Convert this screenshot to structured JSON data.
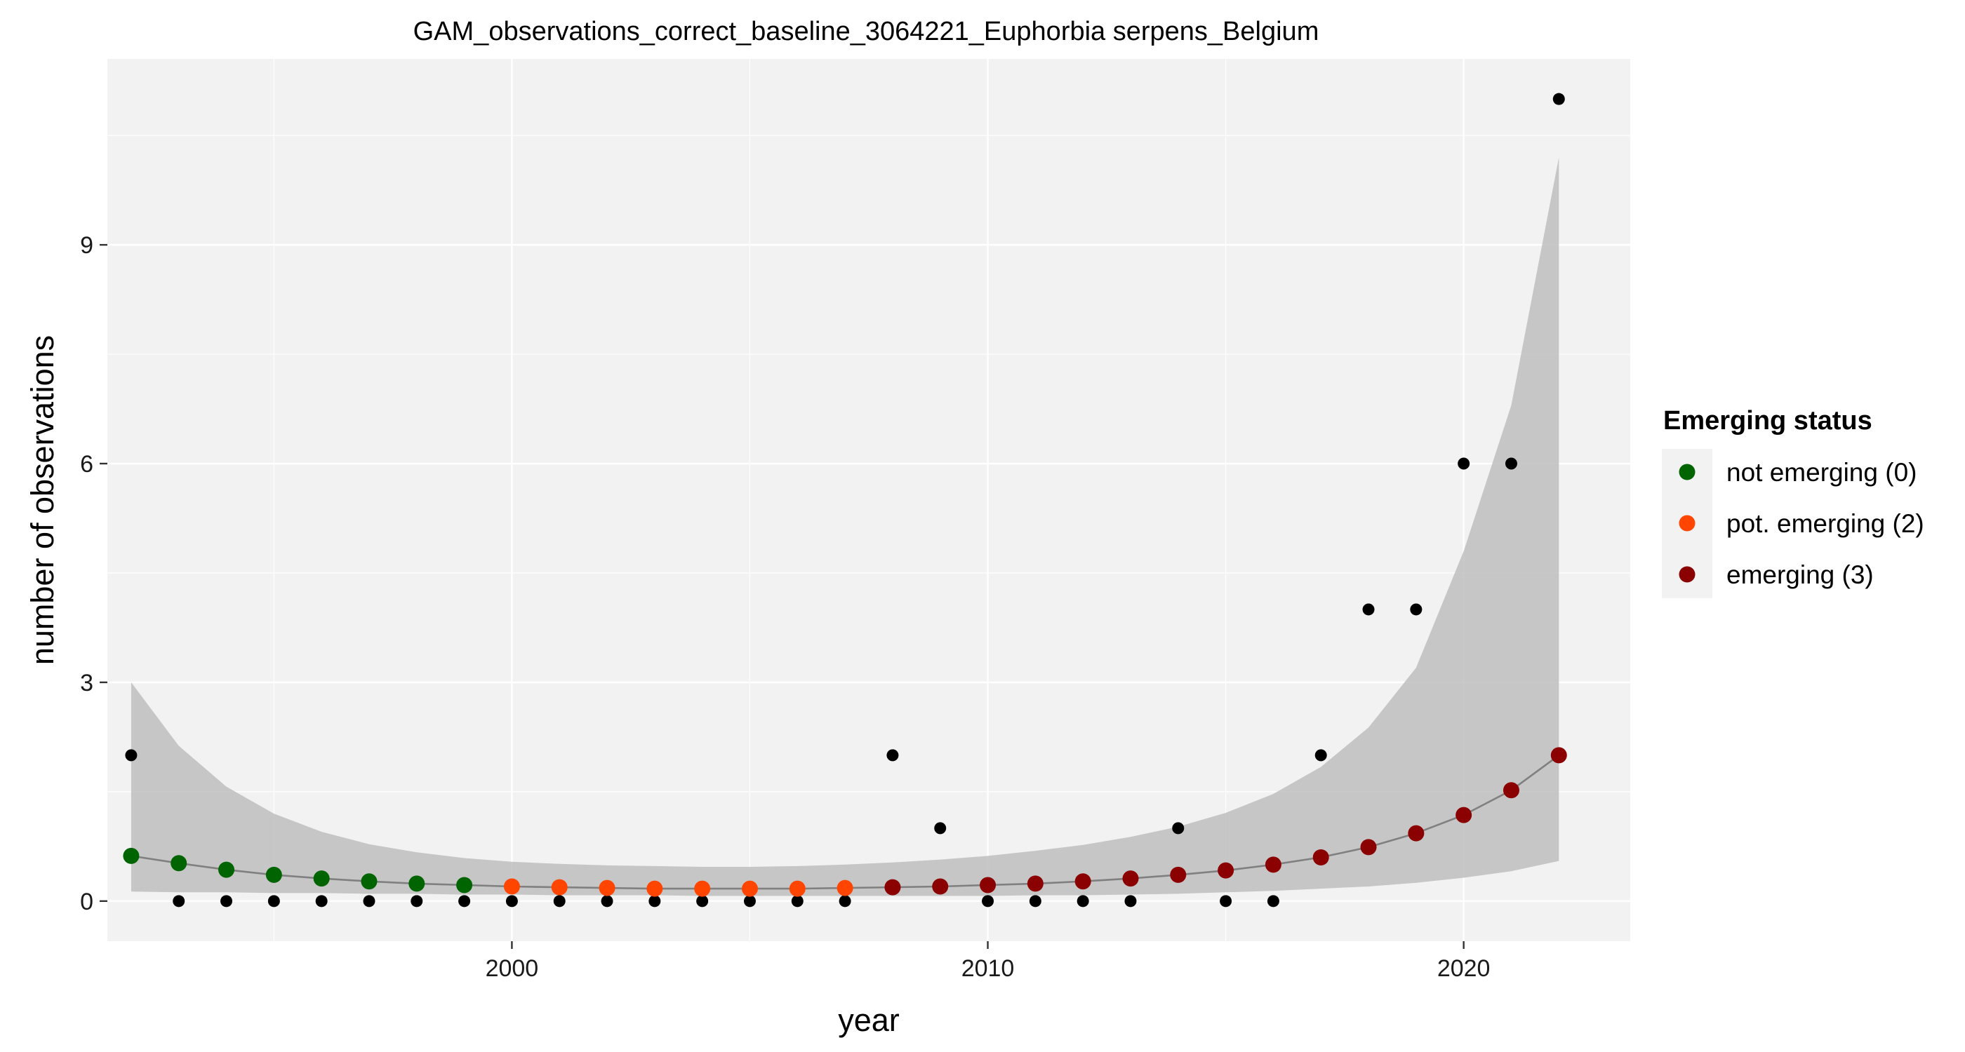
{
  "chart_data": {
    "type": "scatter",
    "title": "GAM_observations_correct_baseline_3064221_Euphorbia serpens_Belgium",
    "xlabel": "year",
    "ylabel": "number of observations",
    "xlim": [
      1991.5,
      2023.5
    ],
    "ylim": [
      -0.55,
      11.55
    ],
    "x_ticks": [
      2000,
      2010,
      2020
    ],
    "y_ticks": [
      0,
      3,
      6,
      9
    ],
    "grid": true,
    "legend": {
      "title": "Emerging status",
      "position": "right",
      "entries": [
        {
          "label": "not emerging (0)",
          "color": "#006400"
        },
        {
          "label": "pot. emerging (2)",
          "color": "#FF4500"
        },
        {
          "label": "emerging (3)",
          "color": "#8B0000"
        }
      ]
    },
    "colors": {
      "panel_background": "#F2F2F2",
      "grid": "#FFFFFF",
      "ribbon": "#BEBEBE",
      "fit_line": "#808080",
      "observation_points": "#000000"
    },
    "observations": {
      "x": [
        1992,
        1993,
        1994,
        1995,
        1996,
        1997,
        1998,
        1999,
        2000,
        2001,
        2002,
        2003,
        2004,
        2005,
        2006,
        2007,
        2008,
        2009,
        2010,
        2011,
        2012,
        2013,
        2014,
        2015,
        2016,
        2017,
        2018,
        2019,
        2020,
        2021,
        2022
      ],
      "y": [
        2,
        0,
        0,
        0,
        0,
        0,
        0,
        0,
        0,
        0,
        0,
        0,
        0,
        0,
        0,
        0,
        2,
        1,
        0,
        0,
        0,
        0,
        1,
        0,
        0,
        2,
        4,
        4,
        6,
        6,
        11
      ]
    },
    "fit": {
      "x": [
        1992,
        1993,
        1994,
        1995,
        1996,
        1997,
        1998,
        1999,
        2000,
        2001,
        2002,
        2003,
        2004,
        2005,
        2006,
        2007,
        2008,
        2009,
        2010,
        2011,
        2012,
        2013,
        2014,
        2015,
        2016,
        2017,
        2018,
        2019,
        2020,
        2021,
        2022
      ],
      "y": [
        0.62,
        0.52,
        0.43,
        0.36,
        0.31,
        0.27,
        0.24,
        0.22,
        0.2,
        0.19,
        0.18,
        0.17,
        0.17,
        0.17,
        0.17,
        0.18,
        0.19,
        0.2,
        0.22,
        0.24,
        0.27,
        0.31,
        0.36,
        0.42,
        0.5,
        0.6,
        0.74,
        0.93,
        1.18,
        1.52,
        2.0
      ],
      "lower": [
        0.13,
        0.12,
        0.12,
        0.11,
        0.11,
        0.1,
        0.1,
        0.09,
        0.09,
        0.08,
        0.08,
        0.08,
        0.07,
        0.07,
        0.07,
        0.07,
        0.07,
        0.07,
        0.07,
        0.08,
        0.08,
        0.09,
        0.1,
        0.12,
        0.14,
        0.17,
        0.2,
        0.25,
        0.32,
        0.41,
        0.55
      ],
      "upper": [
        3.0,
        2.13,
        1.57,
        1.2,
        0.95,
        0.78,
        0.67,
        0.59,
        0.54,
        0.51,
        0.49,
        0.48,
        0.47,
        0.47,
        0.48,
        0.5,
        0.53,
        0.57,
        0.62,
        0.69,
        0.77,
        0.88,
        1.02,
        1.21,
        1.47,
        1.84,
        2.38,
        3.2,
        4.8,
        6.8,
        10.2
      ],
      "status": [
        0,
        0,
        0,
        0,
        0,
        0,
        0,
        0,
        2,
        2,
        2,
        2,
        2,
        2,
        2,
        2,
        3,
        3,
        3,
        3,
        3,
        3,
        3,
        3,
        3,
        3,
        3,
        3,
        3,
        3,
        3
      ]
    }
  }
}
